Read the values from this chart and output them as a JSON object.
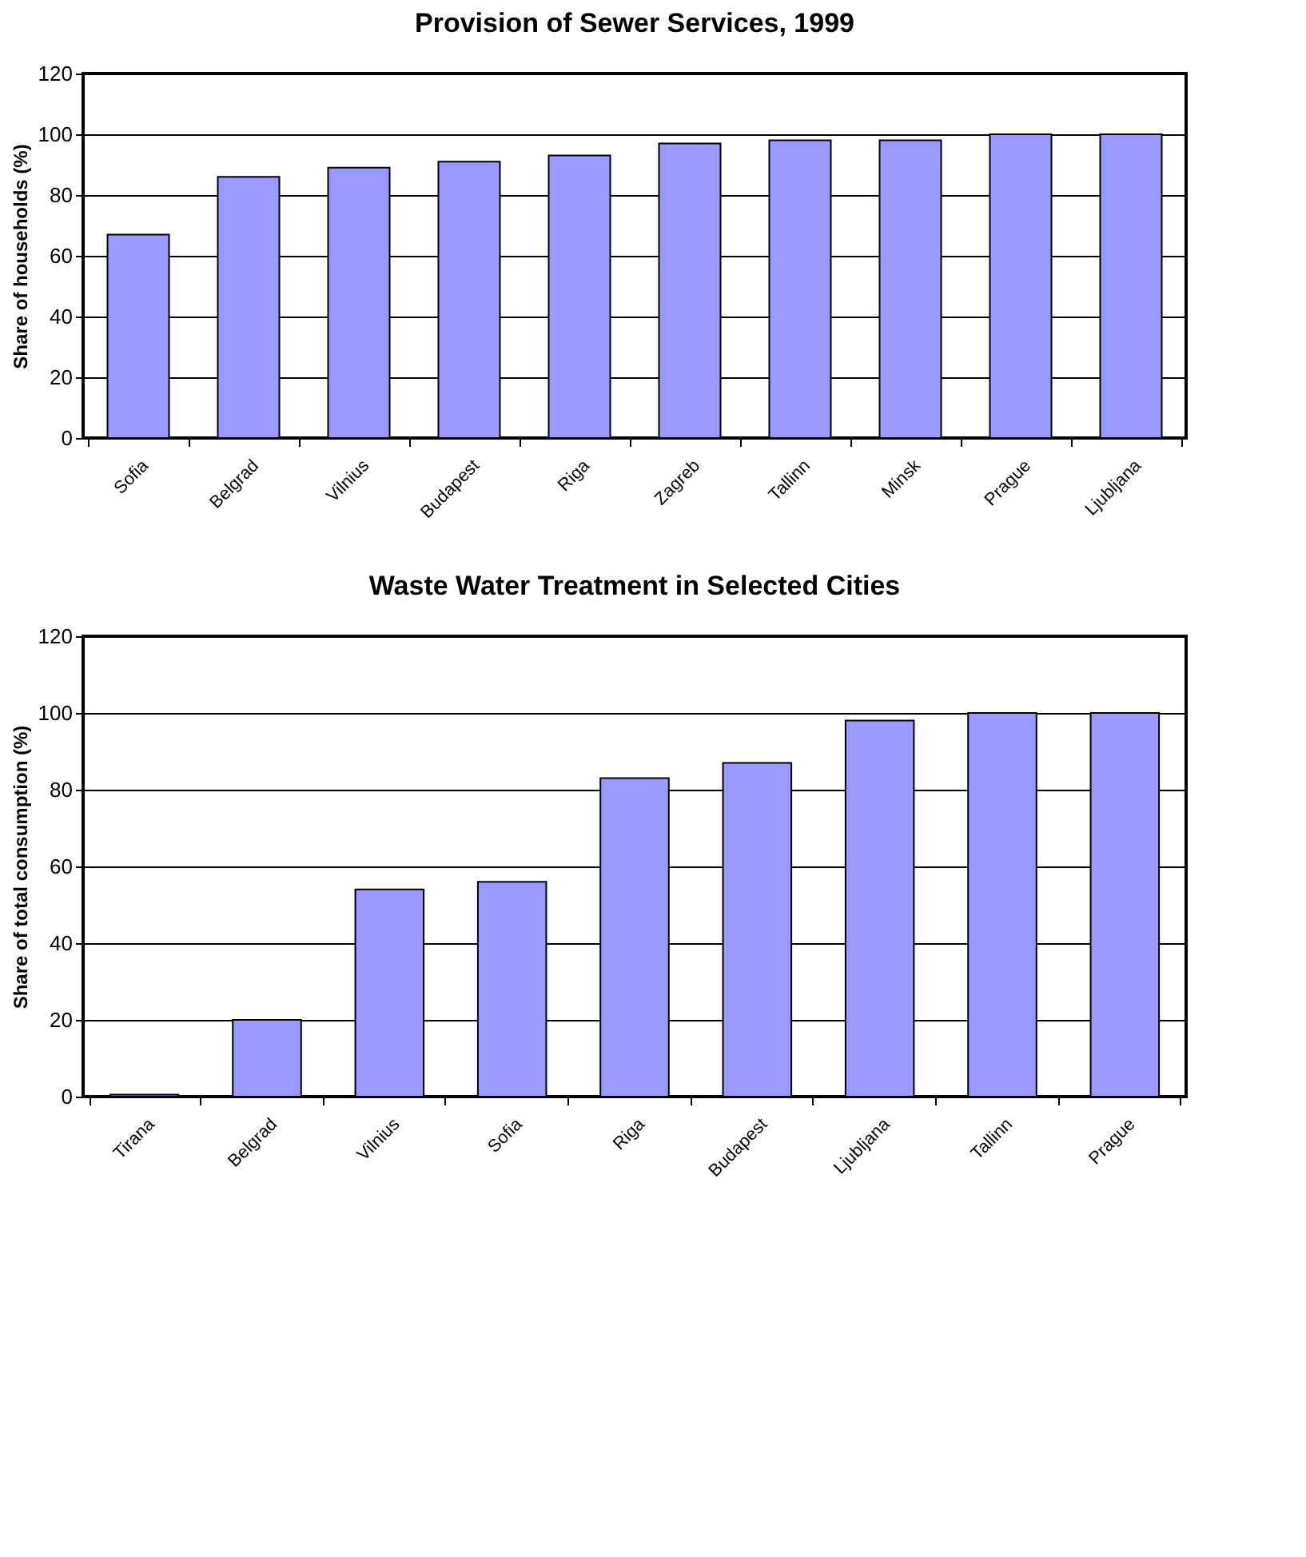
{
  "chart_data": [
    {
      "type": "bar",
      "title": "Provision of Sewer Services, 1999",
      "ylabel": "Share of households (%)",
      "categories": [
        "Sofia",
        "Belgrad",
        "Vilnius",
        "Budapest",
        "Riga",
        "Zagreb",
        "Tallinn",
        "Minsk",
        "Prague",
        "Ljubljana"
      ],
      "series": [
        {
          "color": "#9999ff",
          "values": [
            67,
            86,
            89,
            91,
            93,
            97,
            98,
            98,
            100,
            100
          ]
        }
      ],
      "ylim": [
        0,
        120
      ],
      "yticks": [
        0,
        20,
        40,
        60,
        80,
        100,
        120
      ],
      "grid": "y",
      "legend": false
    },
    {
      "type": "bar",
      "title": "Waste Water Treatment in Selected Cities",
      "ylabel": "Share of total consumption (%)",
      "categories": [
        "Tirana",
        "Belgrad",
        "Vilnius",
        "Sofia",
        "Riga",
        "Budapest",
        "Ljubljana",
        "Tallinn",
        "Prague"
      ],
      "series": [
        {
          "color": "#9999ff",
          "values": [
            0.5,
            20,
            54,
            56,
            83,
            87,
            98,
            100,
            100
          ]
        }
      ],
      "ylim": [
        0,
        120
      ],
      "yticks": [
        0,
        20,
        40,
        60,
        80,
        100,
        120
      ],
      "grid": "y",
      "legend": false
    }
  ]
}
